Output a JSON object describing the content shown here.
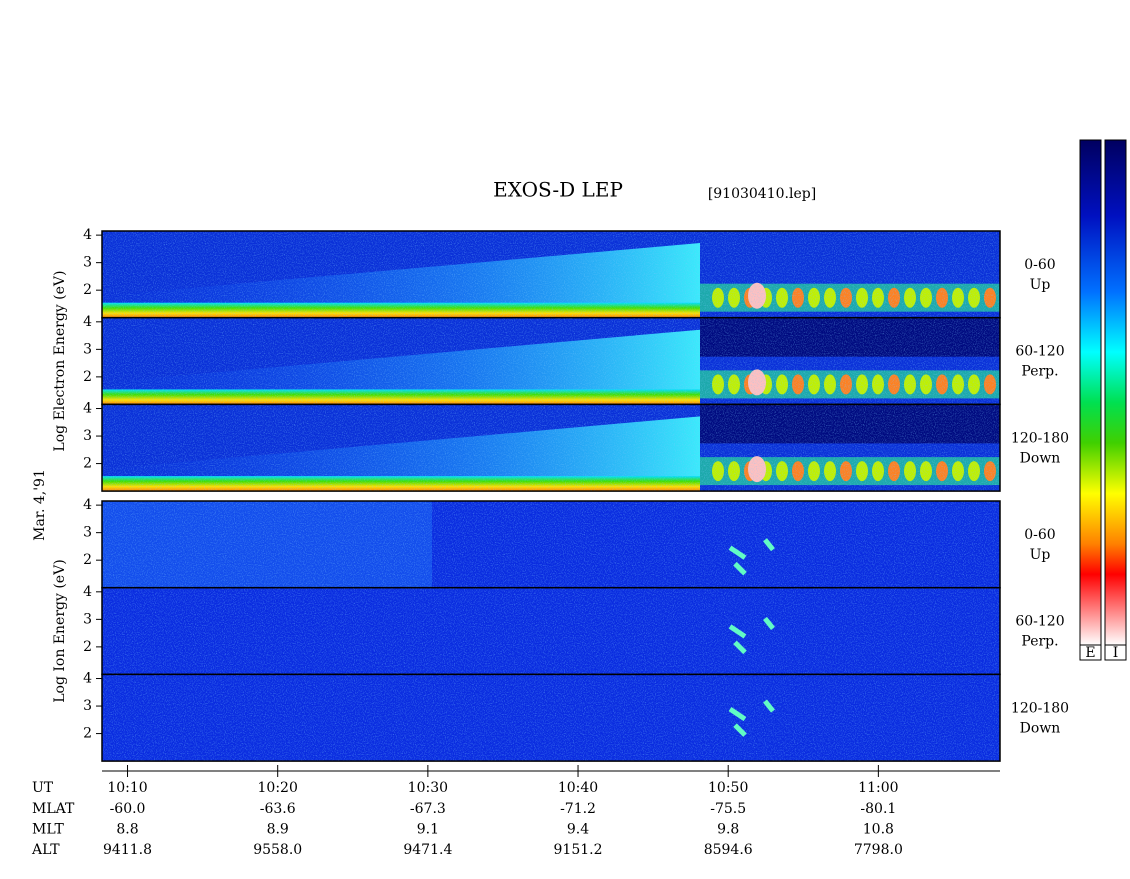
{
  "chart_data": {
    "type": "spectrogram",
    "title": "EXOS-D LEP",
    "subtitle": "[91030410.lep]",
    "date": "Mar. 4,'91",
    "x_label": "UT",
    "xlim": [
      608.3,
      668.1
    ],
    "xticks": [
      {
        "value": 610,
        "label": "10:10"
      },
      {
        "value": 620,
        "label": "10:20"
      },
      {
        "value": 630,
        "label": "10:30"
      },
      {
        "value": 640,
        "label": "10:40"
      },
      {
        "value": 650,
        "label": "10:50"
      },
      {
        "value": 660,
        "label": "11:00"
      }
    ],
    "ylim": [
      1,
      4.15
    ],
    "yticks": [
      2,
      3,
      4
    ],
    "groups": [
      {
        "y_label": "Log Electron Energy (eV)",
        "panels": [
          {
            "labels": [
              "0-60",
              "Up"
            ]
          },
          {
            "labels": [
              "60-120",
              "Perp."
            ]
          },
          {
            "labels": [
              "120-180",
              "Down"
            ]
          }
        ]
      },
      {
        "y_label": "Log Ion Energy (eV)",
        "panels": [
          {
            "labels": [
              "0-60",
              "Up"
            ]
          },
          {
            "labels": [
              "60-120",
              "Perp."
            ]
          },
          {
            "labels": [
              "120-180",
              "Down"
            ]
          }
        ]
      }
    ],
    "ephemeris": [
      {
        "name": "MLAT",
        "values": [
          "-60.0",
          "-63.6",
          "-67.3",
          "-71.2",
          "-75.5",
          "-80.1"
        ]
      },
      {
        "name": "MLT",
        "values": [
          "8.8",
          "8.9",
          "9.1",
          "9.4",
          "9.8",
          "10.8"
        ]
      },
      {
        "name": "ALT",
        "values": [
          "9411.8",
          "9558.0",
          "9471.4",
          "9151.2",
          "8594.6",
          "7798.0"
        ]
      }
    ],
    "colorbar_labels": [
      "E",
      "I"
    ]
  }
}
